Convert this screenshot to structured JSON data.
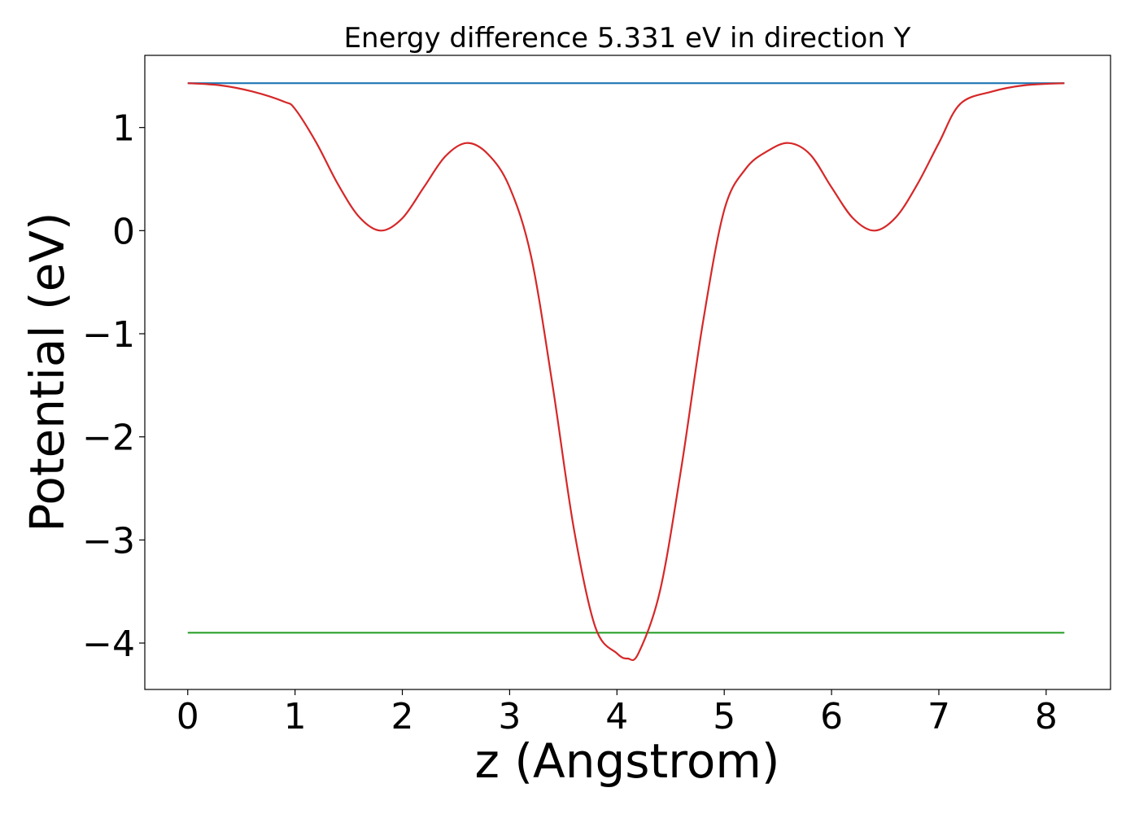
{
  "chart_data": {
    "type": "line",
    "title": "Energy difference 5.331 eV in direction Y",
    "xlabel": "z (Angstrom)",
    "ylabel": "Potential (eV)",
    "xlim": [
      -0.4,
      8.6
    ],
    "ylim": [
      -4.45,
      1.7
    ],
    "xticks": [
      0,
      1,
      2,
      3,
      4,
      5,
      6,
      7,
      8
    ],
    "xtick_labels": [
      "0",
      "1",
      "2",
      "3",
      "4",
      "5",
      "6",
      "7",
      "8"
    ],
    "yticks": [
      1,
      0,
      -1,
      -2,
      -3,
      -4
    ],
    "ytick_labels": [
      "1",
      "0",
      "−1",
      "−2",
      "−3",
      "−4"
    ],
    "grid": false,
    "series": [
      {
        "color": "#1f77b4",
        "x": [
          0,
          8.17
        ],
        "y": [
          1.43,
          1.43
        ]
      },
      {
        "color": "#2ca02c",
        "x": [
          0,
          8.17
        ],
        "y": [
          -3.9,
          -3.9
        ]
      },
      {
        "color": "#d62728",
        "x": [
          0,
          0.3,
          0.6,
          0.9,
          1.0,
          1.2,
          1.4,
          1.6,
          1.8,
          2.0,
          2.2,
          2.4,
          2.6,
          2.8,
          3.0,
          3.2,
          3.4,
          3.6,
          3.8,
          4.0,
          4.1,
          4.2,
          4.4,
          4.6,
          4.8,
          5.0,
          5.2,
          5.4,
          5.6,
          5.8,
          6.0,
          6.2,
          6.4,
          6.6,
          6.8,
          7.0,
          7.2,
          7.5,
          7.8,
          8.17
        ],
        "y": [
          1.43,
          1.41,
          1.35,
          1.25,
          1.18,
          0.85,
          0.45,
          0.13,
          0.0,
          0.12,
          0.42,
          0.72,
          0.85,
          0.74,
          0.42,
          -0.25,
          -1.5,
          -2.9,
          -3.85,
          -4.1,
          -4.15,
          -4.1,
          -3.5,
          -2.3,
          -0.9,
          0.2,
          0.6,
          0.77,
          0.85,
          0.74,
          0.42,
          0.12,
          0.0,
          0.13,
          0.45,
          0.85,
          1.23,
          1.35,
          1.41,
          1.43
        ]
      }
    ]
  }
}
